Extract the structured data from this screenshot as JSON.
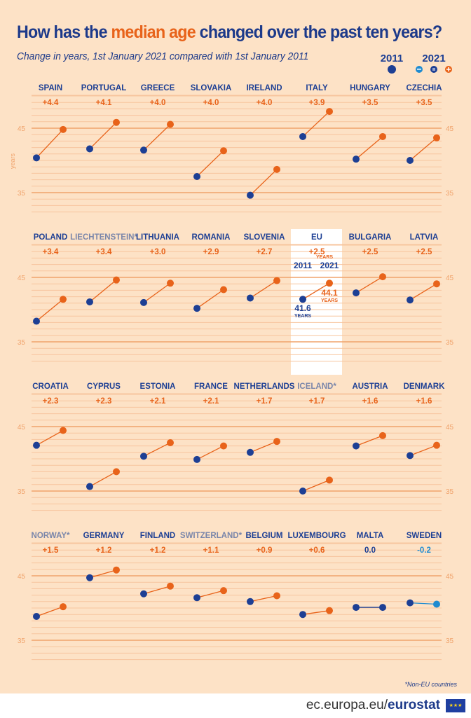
{
  "title": {
    "before": "How has the ",
    "highlight": "median age",
    "after": " changed over the past ten years?"
  },
  "subtitle": "Change in years, 1st January 2021 compared with 1st January 2011",
  "legend": {
    "year1": "2011",
    "year2": "2021",
    "icons": [
      "dot-2011",
      "decrease-icon",
      "no-change-icon",
      "increase-icon"
    ]
  },
  "colors": {
    "y2011": "#1d3f94",
    "increase": "#e8631a",
    "decrease": "#1f8bd0",
    "nonEU": "#7a86aa",
    "grid": "#f7c59e",
    "axis": "#f0a36c"
  },
  "footnote": "*Non-EU countries",
  "footer": {
    "url_prefix": "ec.europa.eu/",
    "url_brand": "eurostat"
  },
  "chart_data": {
    "type": "slope",
    "title": "How has the median age changed over the past ten years?",
    "ylabel": "years",
    "yticks": [
      35,
      45
    ],
    "ylim": [
      32,
      50
    ],
    "grid": true,
    "eu_panel": {
      "change_unit": "YEARS",
      "label_2011": "2011",
      "label_2021": "2021",
      "value_2011_text": "41.6",
      "value_2021_text": "44.1",
      "unit": "YEARS"
    },
    "series_names": [
      "2011",
      "2021"
    ],
    "countries": [
      {
        "name": "SPAIN",
        "change": "+4.4",
        "v2011": 40.4,
        "v2021": 44.8
      },
      {
        "name": "PORTUGAL",
        "change": "+4.1",
        "v2011": 41.8,
        "v2021": 45.9
      },
      {
        "name": "GREECE",
        "change": "+4.0",
        "v2011": 41.6,
        "v2021": 45.6
      },
      {
        "name": "SLOVAKIA",
        "change": "+4.0",
        "v2011": 37.5,
        "v2021": 41.5
      },
      {
        "name": "IRELAND",
        "change": "+4.0",
        "v2011": 34.6,
        "v2021": 38.6
      },
      {
        "name": "ITALY",
        "change": "+3.9",
        "v2011": 43.7,
        "v2021": 47.6
      },
      {
        "name": "HUNGARY",
        "change": "+3.5",
        "v2011": 40.2,
        "v2021": 43.7
      },
      {
        "name": "CZECHIA",
        "change": "+3.5",
        "v2011": 40.0,
        "v2021": 43.5
      },
      {
        "name": "POLAND",
        "change": "+3.4",
        "v2011": 38.2,
        "v2021": 41.6
      },
      {
        "name": "LIECHTENSTEIN*",
        "change": "+3.4",
        "v2011": 41.2,
        "v2021": 44.6,
        "nonEU": true
      },
      {
        "name": "LITHUANIA",
        "change": "+3.0",
        "v2011": 41.1,
        "v2021": 44.1
      },
      {
        "name": "ROMANIA",
        "change": "+2.9",
        "v2011": 40.2,
        "v2021": 43.1
      },
      {
        "name": "SLOVENIA",
        "change": "+2.7",
        "v2011": 41.8,
        "v2021": 44.5
      },
      {
        "name": "EU",
        "change": "+2.5",
        "v2011": 41.6,
        "v2021": 44.1,
        "eu": true
      },
      {
        "name": "BULGARIA",
        "change": "+2.5",
        "v2011": 42.6,
        "v2021": 45.1
      },
      {
        "name": "LATVIA",
        "change": "+2.5",
        "v2011": 41.5,
        "v2021": 44.0
      },
      {
        "name": "CROATIA",
        "change": "+2.3",
        "v2011": 42.1,
        "v2021": 44.4
      },
      {
        "name": "CYPRUS",
        "change": "+2.3",
        "v2011": 35.7,
        "v2021": 38.0
      },
      {
        "name": "ESTONIA",
        "change": "+2.1",
        "v2011": 40.4,
        "v2021": 42.5
      },
      {
        "name": "FRANCE",
        "change": "+2.1",
        "v2011": 39.9,
        "v2021": 42.0
      },
      {
        "name": "NETHERLANDS",
        "change": "+1.7",
        "v2011": 41.0,
        "v2021": 42.7
      },
      {
        "name": "ICELAND*",
        "change": "+1.7",
        "v2011": 35.0,
        "v2021": 36.7,
        "nonEU": true
      },
      {
        "name": "AUSTRIA",
        "change": "+1.6",
        "v2011": 42.0,
        "v2021": 43.6
      },
      {
        "name": "DENMARK",
        "change": "+1.6",
        "v2011": 40.5,
        "v2021": 42.1
      },
      {
        "name": "NORWAY*",
        "change": "+1.5",
        "v2011": 38.7,
        "v2021": 40.2,
        "nonEU": true
      },
      {
        "name": "GERMANY",
        "change": "+1.2",
        "v2011": 44.7,
        "v2021": 45.9
      },
      {
        "name": "FINLAND",
        "change": "+1.2",
        "v2011": 42.2,
        "v2021": 43.4
      },
      {
        "name": "SWITZERLAND*",
        "change": "+1.1",
        "v2011": 41.6,
        "v2021": 42.7,
        "nonEU": true
      },
      {
        "name": "BELGIUM",
        "change": "+0.9",
        "v2011": 41.0,
        "v2021": 41.9
      },
      {
        "name": "LUXEMBOURG",
        "change": "+0.6",
        "v2011": 39.0,
        "v2021": 39.6
      },
      {
        "name": "MALTA",
        "change": "0.0",
        "v2011": 40.1,
        "v2021": 40.1
      },
      {
        "name": "SWEDEN",
        "change": "-0.2",
        "v2011": 40.8,
        "v2021": 40.6
      }
    ]
  }
}
